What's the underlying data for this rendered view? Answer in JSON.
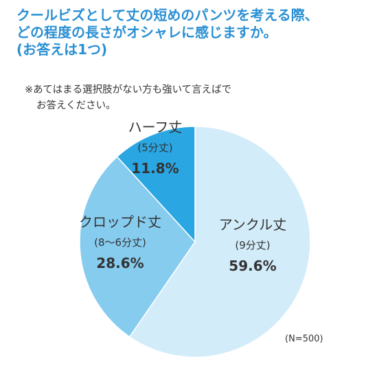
{
  "title": {
    "line1": "クールビズとして丈の短めのパンツを考える際、",
    "line2": "どの程度の長さがオシャレに感じますか。",
    "line3": "(お答えは1つ)"
  },
  "note": {
    "line1": "※あてはまる選択肢がない方も強いて言えばで",
    "line2": "お答えください。"
  },
  "footnote": "(N=500)",
  "chart_data": {
    "type": "pie",
    "start_angle": "12 o'clock",
    "direction": "clockwise",
    "slices": [
      {
        "label": "アンクル丈",
        "sub_label": "(9分丈)",
        "value": 59.6,
        "display": "59.6%",
        "color": "#d3ecfa"
      },
      {
        "label": "クロップド丈",
        "sub_label": "(8〜6分丈)",
        "value": 28.6,
        "display": "28.6%",
        "color": "#86ccef"
      },
      {
        "label": "ハーフ丈",
        "sub_label": "(5分丈)",
        "value": 11.8,
        "display": "11.8%",
        "color": "#2aa6e2"
      }
    ]
  }
}
